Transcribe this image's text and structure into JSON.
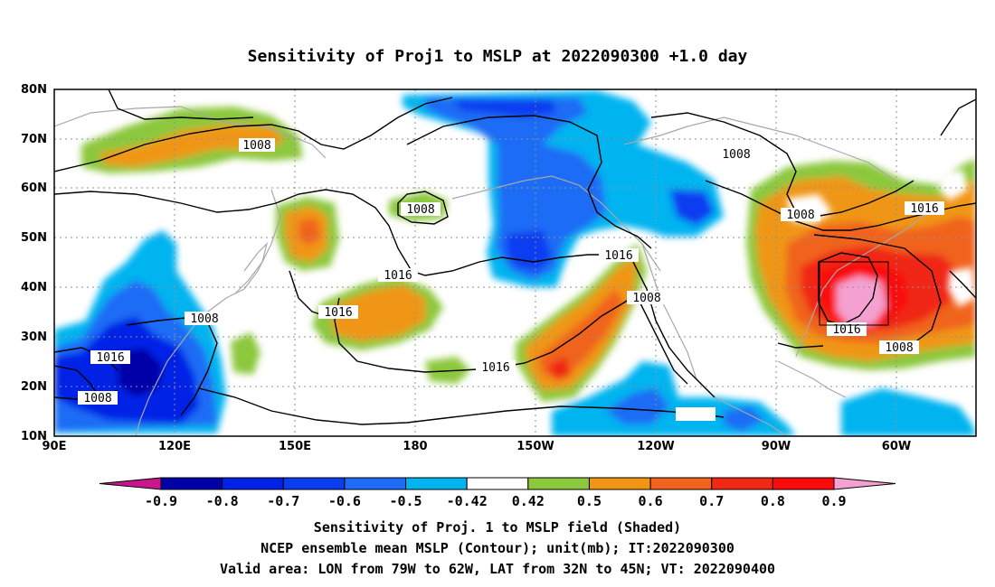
{
  "title": "Sensitivity of Proj1 to MSLP at 2022090300 +1.0 day",
  "map": {
    "lon_ticks": [
      "90E",
      "120E",
      "150E",
      "180",
      "150W",
      "120W",
      "90W",
      "60W"
    ],
    "lat_ticks": [
      "10N",
      "20N",
      "30N",
      "40N",
      "50N",
      "60N",
      "70N",
      "80N"
    ],
    "lon_range": [
      90,
      320
    ],
    "lat_range": [
      10,
      80
    ],
    "grid": "dotted",
    "valid_area": {
      "lon": [
        -79,
        -62
      ],
      "lat": [
        32,
        45
      ]
    },
    "contour_labels": [
      "1008",
      "1008",
      "1008",
      "1008",
      "1008",
      "1008",
      "1008",
      "1016",
      "1016",
      "1016",
      "1016",
      "1016",
      "1016",
      "1016",
      "1008"
    ]
  },
  "colorbar": {
    "labels": [
      "-0.9",
      "-0.8",
      "-0.7",
      "-0.6",
      "-0.5",
      "-0.42",
      "0.42",
      "0.5",
      "0.6",
      "0.7",
      "0.8",
      "0.9"
    ],
    "colors": {
      "low_end": "#c8168c",
      "bins": [
        "#0000a8",
        "#0022e6",
        "#0a3cf0",
        "#1e6cf5",
        "#00b4f0",
        "#ffffff",
        "#8cc83c",
        "#f09614",
        "#f0641e",
        "#f02814",
        "#fa0a0a"
      ],
      "high_end": "#f4a0d0"
    }
  },
  "caption": {
    "line1": "Sensitivity of Proj. 1 to MSLP field (Shaded)",
    "line2": "NCEP ensemble mean MSLP (Contour); unit(mb); IT:2022090300",
    "line3": "Valid area: LON from 79W to 62W, LAT from 32N to 45N; VT: 2022090400"
  }
}
